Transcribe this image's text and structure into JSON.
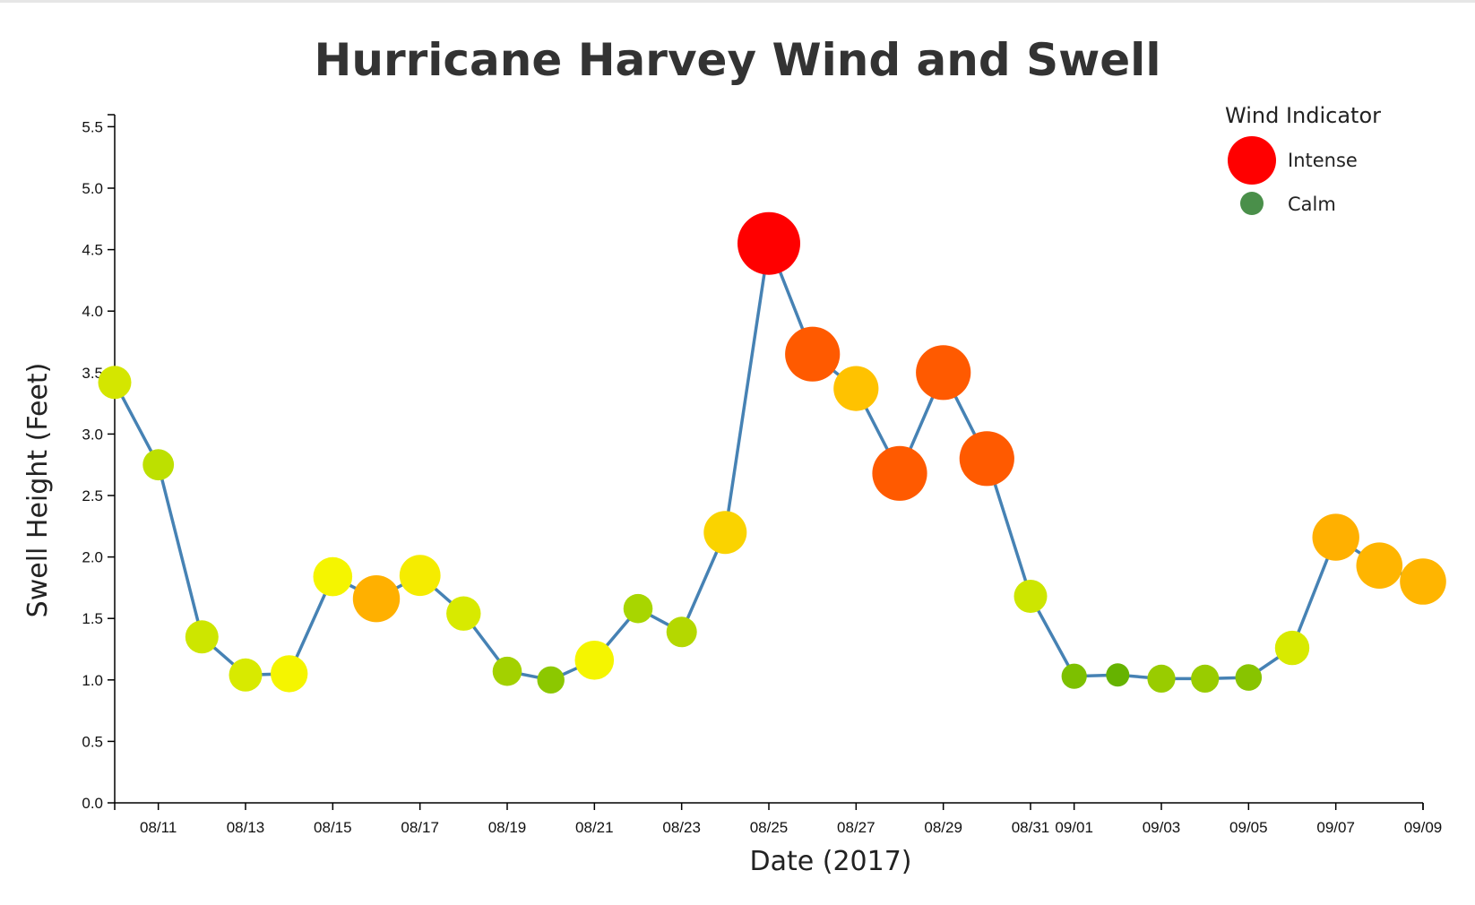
{
  "chart_data": {
    "type": "scatter",
    "title": "Hurricane Harvey Wind and Swell",
    "xlabel": "Date (2017)",
    "ylabel": "Swell Height (Feet)",
    "ylim": [
      0,
      5.5
    ],
    "xlim": [
      "2017-08-10",
      "2017-09-09"
    ],
    "y_ticks": [
      "0.0",
      "0.5",
      "1.0",
      "1.5",
      "2.0",
      "2.5",
      "3.0",
      "3.5",
      "4.0",
      "4.5",
      "5.0",
      "5.5"
    ],
    "x_ticks": [
      {
        "date": "2017-08-11",
        "label": "08/11"
      },
      {
        "date": "2017-08-13",
        "label": "08/13"
      },
      {
        "date": "2017-08-15",
        "label": "08/15"
      },
      {
        "date": "2017-08-17",
        "label": "08/17"
      },
      {
        "date": "2017-08-19",
        "label": "08/19"
      },
      {
        "date": "2017-08-21",
        "label": "08/21"
      },
      {
        "date": "2017-08-23",
        "label": "08/23"
      },
      {
        "date": "2017-08-25",
        "label": "08/25"
      },
      {
        "date": "2017-08-27",
        "label": "08/27"
      },
      {
        "date": "2017-08-29",
        "label": "08/29"
      },
      {
        "date": "2017-08-31",
        "label": "08/31"
      },
      {
        "date": "2017-09-01",
        "label": "09/01"
      },
      {
        "date": "2017-09-03",
        "label": "09/03"
      },
      {
        "date": "2017-09-05",
        "label": "09/05"
      },
      {
        "date": "2017-09-07",
        "label": "09/07"
      },
      {
        "date": "2017-09-09",
        "label": "09/09"
      }
    ],
    "line_color": "#4682b4",
    "legend": {
      "title": "Wind Indicator",
      "position": "top-right",
      "items": [
        {
          "label": "Intense",
          "color": "#ff0000",
          "level": 1.0
        },
        {
          "label": "Calm",
          "color": "#4a8f4a",
          "level": 0.0
        }
      ]
    },
    "points": [
      {
        "date": "2017-08-10",
        "swell": 3.42,
        "wind_level": 0.25,
        "color": "#d4e600"
      },
      {
        "date": "2017-08-11",
        "swell": 2.75,
        "wind_level": 0.2,
        "color": "#bde000"
      },
      {
        "date": "2017-08-12",
        "swell": 1.35,
        "wind_level": 0.25,
        "color": "#cde600"
      },
      {
        "date": "2017-08-13",
        "swell": 1.04,
        "wind_level": 0.25,
        "color": "#d8ea00"
      },
      {
        "date": "2017-08-14",
        "swell": 1.05,
        "wind_level": 0.35,
        "color": "#f5f500"
      },
      {
        "date": "2017-08-15",
        "swell": 1.84,
        "wind_level": 0.4,
        "color": "#f5f500"
      },
      {
        "date": "2017-08-16",
        "swell": 1.66,
        "wind_level": 0.6,
        "color": "#ffb000"
      },
      {
        "date": "2017-08-17",
        "swell": 1.85,
        "wind_level": 0.45,
        "color": "#f5ec00"
      },
      {
        "date": "2017-08-18",
        "swell": 1.54,
        "wind_level": 0.28,
        "color": "#d8ea00"
      },
      {
        "date": "2017-08-19",
        "swell": 1.07,
        "wind_level": 0.15,
        "color": "#a3d100"
      },
      {
        "date": "2017-08-20",
        "swell": 1.0,
        "wind_level": 0.1,
        "color": "#8cc800"
      },
      {
        "date": "2017-08-21",
        "swell": 1.16,
        "wind_level": 0.4,
        "color": "#f5f500"
      },
      {
        "date": "2017-08-22",
        "swell": 1.58,
        "wind_level": 0.15,
        "color": "#a8d600"
      },
      {
        "date": "2017-08-23",
        "swell": 1.39,
        "wind_level": 0.18,
        "color": "#b4d800"
      },
      {
        "date": "2017-08-24",
        "swell": 2.2,
        "wind_level": 0.5,
        "color": "#fad300"
      },
      {
        "date": "2017-08-25",
        "swell": 4.55,
        "wind_level": 1.0,
        "color": "#ff0000"
      },
      {
        "date": "2017-08-26",
        "swell": 3.65,
        "wind_level": 0.8,
        "color": "#ff5a00"
      },
      {
        "date": "2017-08-27",
        "swell": 3.37,
        "wind_level": 0.55,
        "color": "#ffc200"
      },
      {
        "date": "2017-08-28",
        "swell": 2.68,
        "wind_level": 0.8,
        "color": "#ff5a00"
      },
      {
        "date": "2017-08-29",
        "swell": 3.5,
        "wind_level": 0.8,
        "color": "#ff5a00"
      },
      {
        "date": "2017-08-30",
        "swell": 2.8,
        "wind_level": 0.8,
        "color": "#ff5a00"
      },
      {
        "date": "2017-08-31",
        "swell": 1.68,
        "wind_level": 0.25,
        "color": "#cde600"
      },
      {
        "date": "2017-09-01",
        "swell": 1.03,
        "wind_level": 0.05,
        "color": "#7dc000"
      },
      {
        "date": "2017-09-02",
        "swell": 1.04,
        "wind_level": 0.0,
        "color": "#66b300"
      },
      {
        "date": "2017-09-03",
        "swell": 1.01,
        "wind_level": 0.12,
        "color": "#99cc00"
      },
      {
        "date": "2017-09-04",
        "swell": 1.01,
        "wind_level": 0.12,
        "color": "#99cc00"
      },
      {
        "date": "2017-09-05",
        "swell": 1.02,
        "wind_level": 0.08,
        "color": "#88c400"
      },
      {
        "date": "2017-09-06",
        "swell": 1.26,
        "wind_level": 0.28,
        "color": "#d8ea00"
      },
      {
        "date": "2017-09-07",
        "swell": 2.16,
        "wind_level": 0.6,
        "color": "#ffb000"
      },
      {
        "date": "2017-09-08",
        "swell": 1.93,
        "wind_level": 0.58,
        "color": "#ffb500"
      },
      {
        "date": "2017-09-09",
        "swell": 1.8,
        "wind_level": 0.58,
        "color": "#ffb500"
      }
    ]
  }
}
